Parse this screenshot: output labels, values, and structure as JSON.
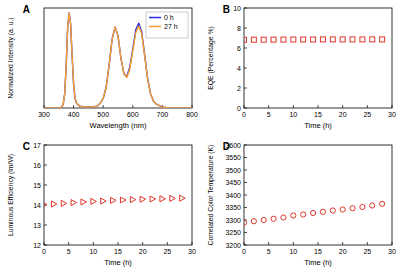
{
  "chart_data": [
    {
      "type": "line",
      "title": "A",
      "x_label": "Wavelength (nm)",
      "y_label": "Normalized Intensity (a. u.)",
      "x": [
        300,
        320,
        340,
        350,
        360,
        365,
        370,
        375,
        380,
        385,
        390,
        395,
        400,
        405,
        410,
        420,
        440,
        460,
        480,
        490,
        500,
        510,
        520,
        530,
        540,
        550,
        560,
        570,
        580,
        590,
        600,
        610,
        620,
        630,
        640,
        650,
        660,
        670,
        680,
        700,
        720,
        750,
        800
      ],
      "series": [
        {
          "name": "0 h",
          "color": "#2a2ae0",
          "values": [
            0,
            0,
            0,
            0,
            0.01,
            0.04,
            0.15,
            0.45,
            0.85,
            1.0,
            0.88,
            0.55,
            0.25,
            0.1,
            0.05,
            0.02,
            0.01,
            0.01,
            0.02,
            0.05,
            0.1,
            0.22,
            0.45,
            0.72,
            0.85,
            0.76,
            0.52,
            0.36,
            0.33,
            0.43,
            0.62,
            0.82,
            0.89,
            0.8,
            0.56,
            0.31,
            0.15,
            0.07,
            0.04,
            0.01,
            0,
            0,
            0
          ]
        },
        {
          "name": "27 h",
          "color": "#f5a030",
          "values": [
            0,
            0,
            0,
            0,
            0.01,
            0.04,
            0.15,
            0.45,
            0.85,
            1.0,
            0.88,
            0.55,
            0.25,
            0.1,
            0.05,
            0.02,
            0.01,
            0.01,
            0.02,
            0.05,
            0.1,
            0.22,
            0.45,
            0.72,
            0.85,
            0.76,
            0.52,
            0.36,
            0.32,
            0.41,
            0.6,
            0.79,
            0.86,
            0.78,
            0.55,
            0.3,
            0.15,
            0.07,
            0.04,
            0.01,
            0,
            0,
            0
          ]
        }
      ],
      "xlim": [
        300,
        800
      ],
      "xticks": [
        300,
        400,
        500,
        600,
        700,
        800
      ],
      "ylim": [
        0,
        1.05
      ],
      "tick_labels": "x",
      "legend": "upper right"
    },
    {
      "type": "scatter",
      "title": "B",
      "x_label": "Time (h)",
      "y_label": "EQE (Percentage %)",
      "x": [
        0,
        2,
        4,
        6,
        8,
        10,
        12,
        14,
        16,
        18,
        20,
        22,
        24,
        26,
        28
      ],
      "values": [
        6.82,
        6.83,
        6.83,
        6.84,
        6.84,
        6.85,
        6.85,
        6.85,
        6.86,
        6.86,
        6.86,
        6.86,
        6.86,
        6.86,
        6.86
      ],
      "color": "#e0352b",
      "marker": "square",
      "xlim": [
        0,
        30
      ],
      "xticks": [
        0,
        5,
        10,
        15,
        20,
        25,
        30
      ],
      "ylim": [
        0,
        10
      ],
      "yticks": [
        0,
        2,
        4,
        6,
        8,
        10
      ]
    },
    {
      "type": "scatter",
      "title": "C",
      "x_label": "Time (h)",
      "y_label": "Luminous Efficiency (lm/W)",
      "x": [
        0,
        2,
        4,
        6,
        8,
        10,
        12,
        14,
        16,
        18,
        20,
        22,
        24,
        26,
        28
      ],
      "values": [
        14.02,
        14.05,
        14.08,
        14.12,
        14.15,
        14.18,
        14.2,
        14.23,
        14.25,
        14.27,
        14.29,
        14.3,
        14.31,
        14.33,
        14.34
      ],
      "color": "#e0352b",
      "marker": "triangle-right",
      "xlim": [
        0,
        30
      ],
      "xticks": [
        0,
        5,
        10,
        15,
        20,
        25,
        30
      ],
      "ylim": [
        12,
        17
      ],
      "yticks": [
        12,
        13,
        14,
        15,
        16,
        17
      ]
    },
    {
      "type": "scatter",
      "title": "D",
      "x_label": "Time (h)",
      "y_label": "Correlated Color Temperature (K)",
      "x": [
        0,
        2,
        4,
        6,
        8,
        10,
        12,
        14,
        16,
        18,
        20,
        22,
        24,
        26,
        28
      ],
      "values": [
        3290,
        3295,
        3300,
        3305,
        3310,
        3318,
        3322,
        3328,
        3333,
        3338,
        3342,
        3347,
        3352,
        3358,
        3365
      ],
      "color": "#e0352b",
      "marker": "circle",
      "xlim": [
        0,
        30
      ],
      "xticks": [
        0,
        5,
        10,
        15,
        20,
        25,
        30
      ],
      "ylim": [
        3200,
        3600
      ],
      "yticks": [
        3200,
        3250,
        3300,
        3350,
        3400,
        3450,
        3500,
        3550,
        3600
      ]
    }
  ]
}
